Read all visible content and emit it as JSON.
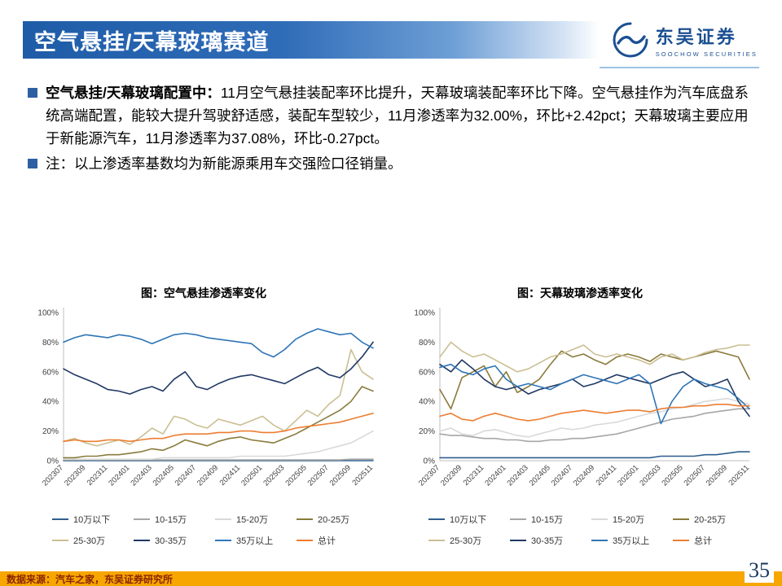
{
  "header": {
    "title": "空气悬挂/天幕玻璃赛道"
  },
  "logo": {
    "name_cn": "东吴证券",
    "name_en": "SOOCHOW SECURITIES",
    "brand_color": "#1B4F93"
  },
  "bullets": [
    {
      "lead": "空气悬挂/天幕玻璃配置中：",
      "text": "11月空气悬挂装配率环比提升，天幕玻璃装配率环比下降。空气悬挂作为汽车底盘系统高端配置，能较大提升驾驶舒适感，装配车型较少，11月渗透率为32.00%，环比+2.42pct；天幕玻璃主要应用于新能源汽车，11月渗透率为37.08%，环比-0.27pct。"
    },
    {
      "lead": "",
      "text": "注：以上渗透率基数均为新能源乘用车交强险口径销量。"
    }
  ],
  "footer": {
    "source": "数据来源：汽车之家，东吴证券研究所",
    "page": "35",
    "bar_color": "#F7A600"
  },
  "chart_data": [
    {
      "type": "line",
      "title": "图：空气悬挂渗透率变化",
      "ylim": [
        0,
        100
      ],
      "y_ticks": [
        "0%",
        "20%",
        "40%",
        "60%",
        "80%",
        "100%"
      ],
      "legend_position": "bottom",
      "grid": false,
      "x": [
        "202307",
        "202308",
        "202309",
        "202310",
        "202311",
        "202312",
        "202401",
        "202402",
        "202403",
        "202404",
        "202405",
        "202406",
        "202407",
        "202408",
        "202409",
        "202410",
        "202411",
        "202412",
        "202501",
        "202502",
        "202503",
        "202504",
        "202505",
        "202506",
        "202507",
        "202508",
        "202509",
        "202510",
        "202511"
      ],
      "x_tick_labels_shown": [
        "202307",
        "202309",
        "202311",
        "202401",
        "202403",
        "202405",
        "202407",
        "202409",
        "202411",
        "202501",
        "202503",
        "202505",
        "202507",
        "202509",
        "202511"
      ],
      "series": [
        {
          "name": "10万以下",
          "color": "#2E5E8E",
          "values": [
            0,
            0,
            0,
            0,
            0,
            0,
            0,
            0,
            0,
            0,
            0,
            0,
            0,
            0,
            0,
            0,
            0,
            0,
            0,
            0,
            0,
            0,
            0,
            0,
            0,
            0,
            0,
            0,
            0
          ]
        },
        {
          "name": "10-15万",
          "color": "#A6A6A6",
          "values": [
            0.5,
            0.5,
            0.5,
            0.5,
            0.5,
            0.5,
            0.5,
            0.5,
            0.5,
            0.5,
            0.5,
            0.5,
            0.5,
            0.5,
            0.5,
            0.5,
            0.5,
            0.5,
            0.5,
            0.5,
            0.5,
            0.5,
            0.5,
            0.5,
            0.5,
            0.5,
            1,
            1,
            1
          ]
        },
        {
          "name": "15-20万",
          "color": "#D9D9D9",
          "values": [
            1,
            1,
            1,
            1,
            1,
            1,
            1,
            1,
            1,
            2,
            2,
            2,
            2,
            2,
            2,
            2,
            3,
            3,
            3,
            3,
            3,
            4,
            5,
            6,
            8,
            10,
            12,
            16,
            20
          ]
        },
        {
          "name": "20-25万",
          "color": "#8A7B3C",
          "values": [
            2,
            2,
            3,
            3,
            4,
            4,
            5,
            6,
            8,
            7,
            10,
            14,
            12,
            10,
            13,
            15,
            16,
            14,
            13,
            12,
            15,
            18,
            22,
            26,
            30,
            34,
            40,
            50,
            47
          ]
        },
        {
          "name": "25-30万",
          "color": "#CBBF93",
          "values": [
            13,
            15,
            12,
            10,
            12,
            14,
            11,
            16,
            22,
            18,
            30,
            28,
            24,
            22,
            28,
            26,
            24,
            27,
            30,
            24,
            20,
            27,
            34,
            30,
            38,
            44,
            75,
            60,
            55
          ]
        },
        {
          "name": "30-35万",
          "color": "#1F3864",
          "values": [
            62,
            58,
            55,
            52,
            48,
            47,
            45,
            48,
            50,
            47,
            55,
            60,
            50,
            48,
            52,
            55,
            57,
            58,
            56,
            54,
            52,
            56,
            60,
            63,
            58,
            56,
            62,
            70,
            80
          ]
        },
        {
          "name": "35万以上",
          "color": "#2E75B6",
          "values": [
            80,
            83,
            85,
            84,
            83,
            85,
            84,
            82,
            79,
            82,
            85,
            86,
            85,
            83,
            82,
            81,
            80,
            79,
            73,
            70,
            75,
            82,
            86,
            89,
            87,
            85,
            86,
            80,
            76
          ]
        },
        {
          "name": "总计",
          "color": "#ED7D31",
          "values": [
            13,
            14,
            13,
            13,
            14,
            14,
            13,
            14,
            15,
            15,
            17,
            18,
            18,
            18,
            19,
            19,
            20,
            20,
            19,
            19,
            20,
            22,
            23,
            24,
            25,
            26,
            28,
            30,
            32
          ]
        }
      ]
    },
    {
      "type": "line",
      "title": "图：天幕玻璃渗透率变化",
      "ylim": [
        0,
        100
      ],
      "y_ticks": [
        "0%",
        "20%",
        "40%",
        "60%",
        "80%",
        "100%"
      ],
      "legend_position": "bottom",
      "grid": false,
      "x": [
        "202307",
        "202308",
        "202309",
        "202310",
        "202311",
        "202312",
        "202401",
        "202402",
        "202403",
        "202404",
        "202405",
        "202406",
        "202407",
        "202408",
        "202409",
        "202410",
        "202411",
        "202412",
        "202501",
        "202502",
        "202503",
        "202504",
        "202505",
        "202506",
        "202507",
        "202508",
        "202509",
        "202510",
        "202511"
      ],
      "x_tick_labels_shown": [
        "202307",
        "202309",
        "202311",
        "202401",
        "202403",
        "202405",
        "202407",
        "202409",
        "202411",
        "202501",
        "202503",
        "202505",
        "202507",
        "202509",
        "202511"
      ],
      "series": [
        {
          "name": "10万以下",
          "color": "#2E5E8E",
          "values": [
            2,
            2,
            2,
            2,
            2,
            2,
            2,
            2,
            2,
            2,
            2,
            2,
            2,
            2,
            2,
            2,
            2,
            2,
            2,
            2,
            3,
            3,
            3,
            3,
            4,
            4,
            5,
            6,
            6
          ]
        },
        {
          "name": "10-15万",
          "color": "#A6A6A6",
          "values": [
            18,
            17,
            17,
            16,
            15,
            15,
            14,
            14,
            13,
            13,
            14,
            14,
            15,
            15,
            16,
            17,
            18,
            20,
            22,
            24,
            26,
            28,
            29,
            30,
            32,
            33,
            34,
            35,
            35
          ]
        },
        {
          "name": "15-20万",
          "color": "#D9D9D9",
          "values": [
            20,
            22,
            18,
            17,
            20,
            21,
            19,
            17,
            16,
            18,
            20,
            22,
            21,
            22,
            24,
            25,
            26,
            28,
            30,
            32,
            33,
            35,
            36,
            38,
            40,
            41,
            42,
            40,
            38
          ]
        },
        {
          "name": "20-25万",
          "color": "#8A7B3C",
          "values": [
            48,
            35,
            56,
            60,
            64,
            50,
            60,
            46,
            50,
            55,
            65,
            74,
            70,
            72,
            68,
            65,
            70,
            72,
            70,
            67,
            72,
            70,
            68,
            70,
            72,
            74,
            72,
            70,
            55
          ]
        },
        {
          "name": "25-30万",
          "color": "#CBBF93",
          "values": [
            70,
            80,
            74,
            70,
            72,
            68,
            64,
            60,
            62,
            66,
            70,
            72,
            75,
            78,
            72,
            70,
            72,
            70,
            68,
            65,
            70,
            72,
            68,
            70,
            73,
            75,
            76,
            78,
            78
          ]
        },
        {
          "name": "30-35万",
          "color": "#1F3864",
          "values": [
            65,
            60,
            68,
            62,
            55,
            50,
            48,
            50,
            45,
            48,
            50,
            52,
            55,
            50,
            52,
            55,
            58,
            56,
            54,
            52,
            55,
            58,
            60,
            55,
            50,
            52,
            55,
            40,
            30
          ]
        },
        {
          "name": "35万以上",
          "color": "#2E75B6",
          "values": [
            63,
            65,
            60,
            58,
            62,
            64,
            55,
            50,
            52,
            50,
            48,
            52,
            55,
            58,
            56,
            54,
            52,
            55,
            58,
            52,
            25,
            40,
            50,
            55,
            52,
            50,
            48,
            42,
            35
          ]
        },
        {
          "name": "总计",
          "color": "#ED7D31",
          "values": [
            30,
            32,
            28,
            27,
            30,
            32,
            30,
            28,
            27,
            28,
            30,
            32,
            33,
            34,
            33,
            32,
            33,
            34,
            34,
            33,
            35,
            36,
            36,
            37,
            37,
            38,
            38,
            37,
            37
          ]
        }
      ]
    }
  ]
}
